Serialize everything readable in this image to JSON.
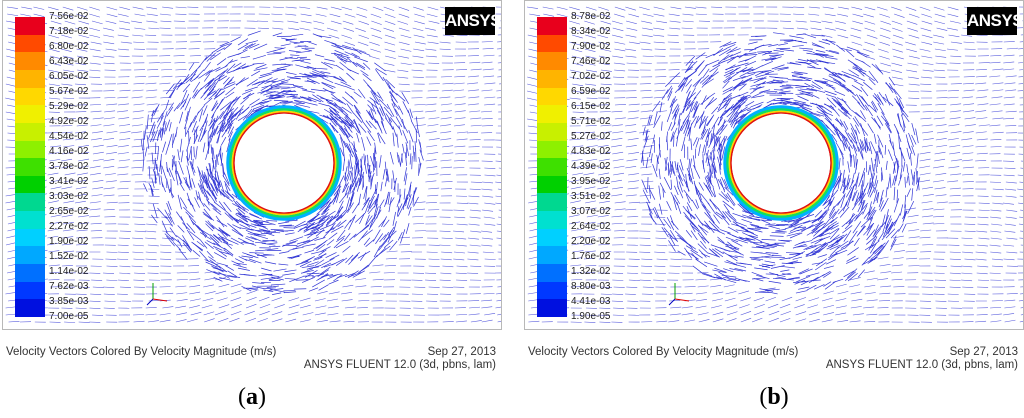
{
  "panels": [
    {
      "id": "a",
      "label_open": "(",
      "label_letter": "a",
      "label_close": ")",
      "logo_text": "ANSYS",
      "caption_title": "Velocity Vectors Colored By Velocity Magnitude (m/s)",
      "caption_date": "Sep 27, 2013",
      "caption_solver": "ANSYS FLUENT 12.0 (3d, pbns, lam)",
      "colorbar_labels": [
        "7.56e-02",
        "7.18e-02",
        "6.80e-02",
        "6.43e-02",
        "6.05e-02",
        "5.67e-02",
        "5.29e-02",
        "4.92e-02",
        "4.54e-02",
        "4.16e-02",
        "3.78e-02",
        "3.41e-02",
        "3.03e-02",
        "2.65e-02",
        "2.27e-02",
        "1.90e-02",
        "1.52e-02",
        "1.14e-02",
        "7.62e-03",
        "3.85e-03",
        "7.00e-05"
      ]
    },
    {
      "id": "b",
      "label_open": "(",
      "label_letter": "b",
      "label_close": ")",
      "logo_text": "ANSYS",
      "caption_title": "Velocity Vectors Colored By Velocity Magnitude (m/s)",
      "caption_date": "Sep 27, 2013",
      "caption_solver": "ANSYS FLUENT 12.0 (3d, pbns, lam)",
      "colorbar_labels": [
        "8.78e-02",
        "8.34e-02",
        "7.90e-02",
        "7.46e-02",
        "7.02e-02",
        "6.59e-02",
        "6.15e-02",
        "5.71e-02",
        "5.27e-02",
        "4.83e-02",
        "4.39e-02",
        "3.95e-02",
        "3.51e-02",
        "3.07e-02",
        "2.64e-02",
        "2.20e-02",
        "1.76e-02",
        "1.32e-02",
        "8.80e-03",
        "4.41e-03",
        "1.90e-05"
      ]
    }
  ],
  "colors": {
    "vector": "#1a1fd0",
    "colormap": [
      "#e8001c",
      "#ff4a00",
      "#ff8a00",
      "#ffb400",
      "#ffd800",
      "#f0f000",
      "#c8f000",
      "#8ef000",
      "#3ee000",
      "#00d000",
      "#00d890",
      "#00e0d0",
      "#00d0ff",
      "#00a8ff",
      "#0070ff",
      "#0038ff",
      "#0010e0"
    ]
  },
  "icons": {
    "axes": "xyz-axes-icon",
    "logo": "ansys-logo"
  }
}
